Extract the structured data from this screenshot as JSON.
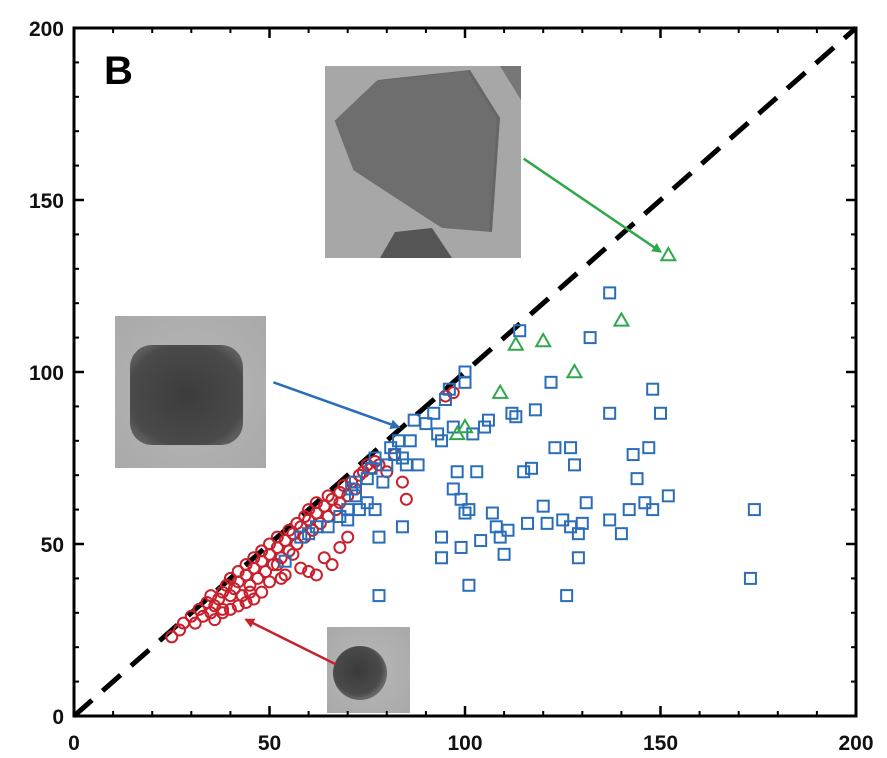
{
  "chart_data": {
    "type": "scatter",
    "panel_label": "B",
    "xlim": [
      0,
      200
    ],
    "ylim": [
      0,
      200
    ],
    "xticks": [
      0,
      50,
      100,
      150,
      200
    ],
    "yticks": [
      0,
      50,
      100,
      150,
      200
    ],
    "xtick_labels": [
      "0",
      "50",
      "100",
      "150",
      "200"
    ],
    "ytick_labels": [
      "0",
      "50",
      "100",
      "150",
      "200"
    ],
    "xlabel": "",
    "ylabel": "",
    "grid": false,
    "reference_line": {
      "style": "dashed",
      "color": "#000000",
      "from": [
        0,
        0
      ],
      "to": [
        200,
        200
      ]
    },
    "series": [
      {
        "marker": "circle",
        "color": "#c8202c",
        "points": [
          [
            25,
            23
          ],
          [
            27,
            25
          ],
          [
            28,
            27
          ],
          [
            30,
            29
          ],
          [
            31,
            27
          ],
          [
            32,
            31
          ],
          [
            33,
            29
          ],
          [
            34,
            33
          ],
          [
            35,
            30
          ],
          [
            35,
            35
          ],
          [
            36,
            32
          ],
          [
            37,
            34
          ],
          [
            38,
            36
          ],
          [
            38,
            31
          ],
          [
            39,
            38
          ],
          [
            40,
            35
          ],
          [
            40,
            40
          ],
          [
            41,
            37
          ],
          [
            42,
            42
          ],
          [
            42,
            39
          ],
          [
            43,
            35
          ],
          [
            44,
            41
          ],
          [
            44,
            44
          ],
          [
            45,
            38
          ],
          [
            46,
            43
          ],
          [
            46,
            46
          ],
          [
            47,
            40
          ],
          [
            48,
            45
          ],
          [
            48,
            48
          ],
          [
            49,
            42
          ],
          [
            50,
            47
          ],
          [
            50,
            50
          ],
          [
            51,
            44
          ],
          [
            52,
            49
          ],
          [
            52,
            52
          ],
          [
            53,
            46
          ],
          [
            54,
            51
          ],
          [
            55,
            54
          ],
          [
            55,
            48
          ],
          [
            56,
            53
          ],
          [
            57,
            56
          ],
          [
            57,
            50
          ],
          [
            58,
            55
          ],
          [
            59,
            58
          ],
          [
            59,
            52
          ],
          [
            60,
            57
          ],
          [
            60,
            60
          ],
          [
            61,
            54
          ],
          [
            62,
            59
          ],
          [
            62,
            62
          ],
          [
            63,
            56
          ],
          [
            64,
            61
          ],
          [
            65,
            58
          ],
          [
            65,
            64
          ],
          [
            66,
            63
          ],
          [
            67,
            60
          ],
          [
            68,
            65
          ],
          [
            68,
            62
          ],
          [
            69,
            67
          ],
          [
            70,
            64
          ],
          [
            71,
            68
          ],
          [
            72,
            66
          ],
          [
            73,
            70
          ],
          [
            74,
            71
          ],
          [
            75,
            73
          ],
          [
            76,
            72
          ],
          [
            77,
            74
          ],
          [
            78,
            73
          ],
          [
            80,
            71
          ],
          [
            82,
            76
          ],
          [
            84,
            68
          ],
          [
            85,
            63
          ],
          [
            95,
            93
          ],
          [
            97,
            94
          ],
          [
            60,
            42
          ],
          [
            62,
            41
          ],
          [
            64,
            46
          ],
          [
            66,
            44
          ],
          [
            68,
            49
          ],
          [
            70,
            52
          ],
          [
            58,
            43
          ],
          [
            56,
            47
          ],
          [
            54,
            41
          ],
          [
            52,
            44
          ],
          [
            48,
            36
          ],
          [
            46,
            34
          ],
          [
            44,
            33
          ],
          [
            42,
            32
          ],
          [
            40,
            31
          ],
          [
            38,
            30
          ],
          [
            36,
            28
          ],
          [
            45,
            36
          ],
          [
            50,
            39
          ],
          [
            53,
            40
          ]
        ]
      },
      {
        "marker": "square",
        "color": "#2a6db8",
        "points": [
          [
            54,
            45
          ],
          [
            58,
            52
          ],
          [
            60,
            53
          ],
          [
            62,
            55
          ],
          [
            65,
            55
          ],
          [
            68,
            58
          ],
          [
            70,
            57
          ],
          [
            70,
            60
          ],
          [
            71,
            66
          ],
          [
            72,
            68
          ],
          [
            72,
            64
          ],
          [
            73,
            60
          ],
          [
            75,
            62
          ],
          [
            75,
            69
          ],
          [
            76,
            72
          ],
          [
            77,
            75
          ],
          [
            77,
            60
          ],
          [
            78,
            52
          ],
          [
            78,
            35
          ],
          [
            79,
            68
          ],
          [
            80,
            73
          ],
          [
            81,
            78
          ],
          [
            82,
            76
          ],
          [
            83,
            80
          ],
          [
            84,
            75
          ],
          [
            84,
            55
          ],
          [
            85,
            73
          ],
          [
            86,
            80
          ],
          [
            87,
            86
          ],
          [
            88,
            73
          ],
          [
            90,
            85
          ],
          [
            92,
            88
          ],
          [
            93,
            82
          ],
          [
            94,
            80
          ],
          [
            94,
            46
          ],
          [
            94,
            52
          ],
          [
            95,
            92
          ],
          [
            96,
            95
          ],
          [
            97,
            84
          ],
          [
            97,
            66
          ],
          [
            98,
            71
          ],
          [
            99,
            63
          ],
          [
            99,
            49
          ],
          [
            100,
            100
          ],
          [
            100,
            97
          ],
          [
            100,
            59
          ],
          [
            101,
            60
          ],
          [
            101,
            38
          ],
          [
            102,
            82
          ],
          [
            103,
            71
          ],
          [
            104,
            51
          ],
          [
            105,
            84
          ],
          [
            106,
            86
          ],
          [
            107,
            59
          ],
          [
            108,
            55
          ],
          [
            109,
            52
          ],
          [
            110,
            47
          ],
          [
            111,
            54
          ],
          [
            112,
            88
          ],
          [
            113,
            87
          ],
          [
            114,
            112
          ],
          [
            115,
            71
          ],
          [
            116,
            56
          ],
          [
            117,
            72
          ],
          [
            118,
            89
          ],
          [
            120,
            61
          ],
          [
            121,
            56
          ],
          [
            122,
            97
          ],
          [
            123,
            78
          ],
          [
            125,
            57
          ],
          [
            126,
            35
          ],
          [
            127,
            78
          ],
          [
            127,
            55
          ],
          [
            128,
            73
          ],
          [
            129,
            46
          ],
          [
            129,
            53
          ],
          [
            130,
            56
          ],
          [
            131,
            62
          ],
          [
            132,
            110
          ],
          [
            137,
            88
          ],
          [
            137,
            57
          ],
          [
            137,
            123
          ],
          [
            140,
            53
          ],
          [
            142,
            60
          ],
          [
            143,
            76
          ],
          [
            144,
            69
          ],
          [
            146,
            62
          ],
          [
            147,
            78
          ],
          [
            148,
            60
          ],
          [
            148,
            95
          ],
          [
            150,
            88
          ],
          [
            152,
            64
          ],
          [
            173,
            40
          ],
          [
            174,
            60
          ]
        ]
      },
      {
        "marker": "triangle",
        "color": "#2ea84a",
        "points": [
          [
            152,
            134
          ],
          [
            140,
            115
          ],
          [
            128,
            100
          ],
          [
            120,
            109
          ],
          [
            113,
            108
          ],
          [
            109,
            94
          ],
          [
            100,
            84
          ],
          [
            98,
            82
          ]
        ]
      }
    ],
    "annotations": [
      {
        "arrow_color": "#2ea84a",
        "from": [
          115,
          162
        ],
        "to": [
          150,
          135
        ],
        "inset": "triangular-particle-image"
      },
      {
        "arrow_color": "#2a6db8",
        "from": [
          51,
          97
        ],
        "to": [
          83,
          84
        ],
        "inset": "square-particle-image"
      },
      {
        "arrow_color": "#c8202c",
        "from": [
          67,
          15
        ],
        "to": [
          44,
          28
        ],
        "inset": "round-particle-image"
      }
    ]
  }
}
